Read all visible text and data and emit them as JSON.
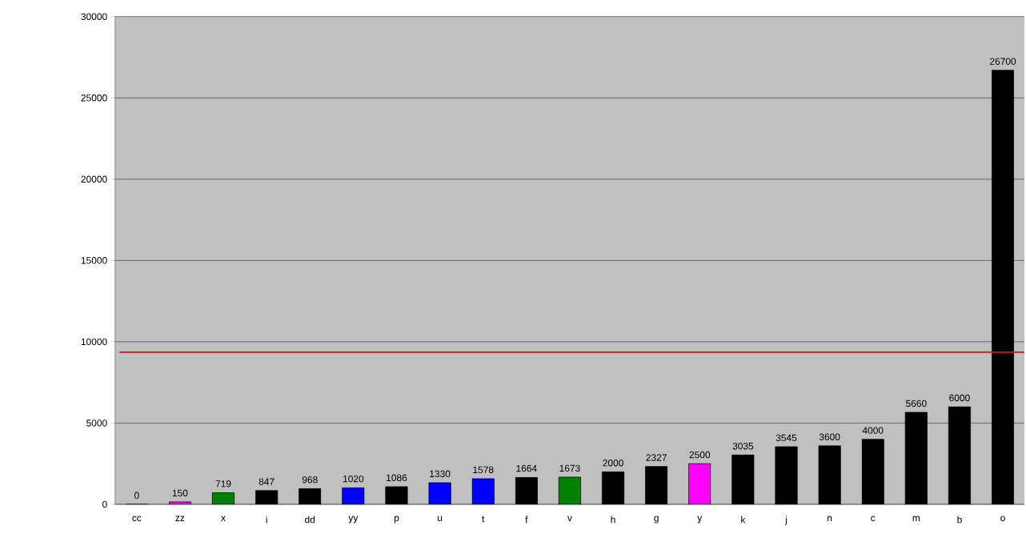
{
  "chart_data": {
    "type": "bar",
    "categories": [
      "cc",
      "zz",
      "x",
      "i",
      "dd",
      "yy",
      "p",
      "u",
      "t",
      "f",
      "v",
      "h",
      "g",
      "y",
      "k",
      "j",
      "n",
      "c",
      "m",
      "b",
      "o"
    ],
    "values": [
      0,
      150,
      719,
      847,
      968,
      1020,
      1086,
      1330,
      1578,
      1664,
      1673,
      2000,
      2327,
      2500,
      3035,
      3545,
      3600,
      4000,
      5660,
      6000,
      26700
    ],
    "colors": [
      "#000000",
      "#ff00ff",
      "#008000",
      "#000000",
      "#000000",
      "#0000ff",
      "#000000",
      "#0000ff",
      "#0000ff",
      "#000000",
      "#008000",
      "#000000",
      "#000000",
      "#ff00ff",
      "#000000",
      "#000000",
      "#000000",
      "#000000",
      "#000000",
      "#000000",
      "#000000"
    ],
    "ylim": [
      0,
      30000
    ],
    "yticks": [
      0,
      5000,
      10000,
      15000,
      20000,
      25000,
      30000
    ],
    "grid": "y",
    "data_labels": true,
    "ref_lines": [
      {
        "axis": "y",
        "value": 9360,
        "color": "#ff0000"
      }
    ]
  }
}
